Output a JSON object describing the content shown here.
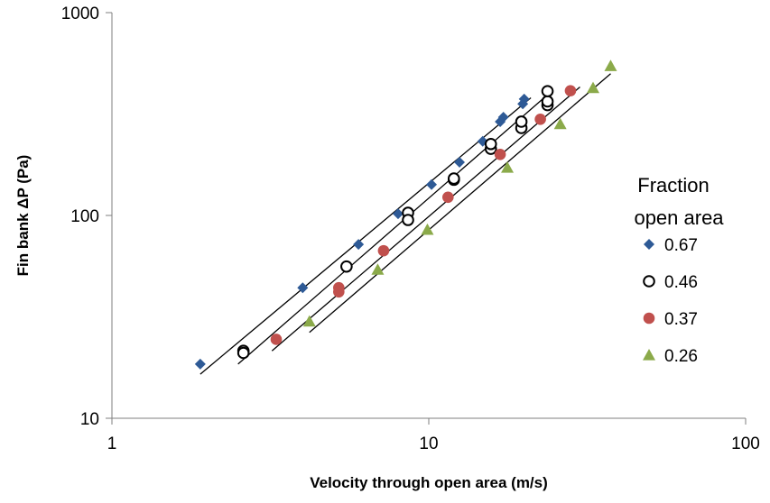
{
  "chart_data": {
    "type": "scatter",
    "title": "",
    "xlabel": "Velocity through open area (m/s)",
    "ylabel": "Fin bank ΔP (Pa)",
    "xscale": "log",
    "yscale": "log",
    "xlim": [
      1,
      100
    ],
    "ylim": [
      10,
      1000
    ],
    "xticks": [
      "1",
      "10",
      "100"
    ],
    "yticks": [
      "10",
      "100",
      "1000"
    ],
    "grid": false,
    "legend": {
      "title": "Fraction open area",
      "title_lines": [
        "Fraction",
        "open area"
      ],
      "placement": "right"
    },
    "series": [
      {
        "name": "0.67",
        "marker": "diamond",
        "color": "#2E5A96",
        "points": [
          [
            1.9,
            18.5
          ],
          [
            4.0,
            44
          ],
          [
            6.0,
            72
          ],
          [
            8.0,
            102
          ],
          [
            10.2,
            142
          ],
          [
            12.5,
            183
          ],
          [
            14.8,
            232
          ],
          [
            16.8,
            290
          ],
          [
            17.2,
            305
          ],
          [
            19.8,
            355
          ],
          [
            20.0,
            375
          ]
        ],
        "fit": [
          [
            1.9,
            16.5
          ],
          [
            21.0,
            380
          ]
        ]
      },
      {
        "name": "0.46",
        "marker": "open-circle",
        "color": "#000000",
        "points": [
          [
            2.6,
            21.5
          ],
          [
            2.6,
            21.0
          ],
          [
            5.5,
            56
          ],
          [
            8.6,
            103
          ],
          [
            8.6,
            95
          ],
          [
            12.0,
            150
          ],
          [
            12.0,
            152
          ],
          [
            15.7,
            213
          ],
          [
            15.7,
            225
          ],
          [
            19.6,
            270
          ],
          [
            19.6,
            290
          ],
          [
            23.7,
            350
          ],
          [
            23.7,
            365
          ],
          [
            23.7,
            410
          ]
        ],
        "fit": [
          [
            2.5,
            18.5
          ],
          [
            24.0,
            400
          ]
        ]
      },
      {
        "name": "0.37",
        "marker": "filled-circle",
        "color": "#C0504D",
        "points": [
          [
            3.3,
            24.5
          ],
          [
            5.2,
            44
          ],
          [
            5.2,
            42
          ],
          [
            7.2,
            67
          ],
          [
            11.5,
            123
          ],
          [
            16.8,
            200
          ],
          [
            22.5,
            298
          ],
          [
            28.0,
            412
          ]
        ],
        "fit": [
          [
            3.2,
            21.5
          ],
          [
            30.0,
            430
          ]
        ]
      },
      {
        "name": "0.26",
        "marker": "triangle",
        "color": "#8BAA4A",
        "points": [
          [
            4.2,
            30
          ],
          [
            6.9,
            54
          ],
          [
            9.9,
            85
          ],
          [
            17.7,
            172
          ],
          [
            26.0,
            282
          ],
          [
            33.0,
            425
          ],
          [
            37.5,
            545
          ]
        ],
        "fit": [
          [
            4.2,
            26.5
          ],
          [
            37.5,
            500
          ]
        ]
      }
    ]
  }
}
